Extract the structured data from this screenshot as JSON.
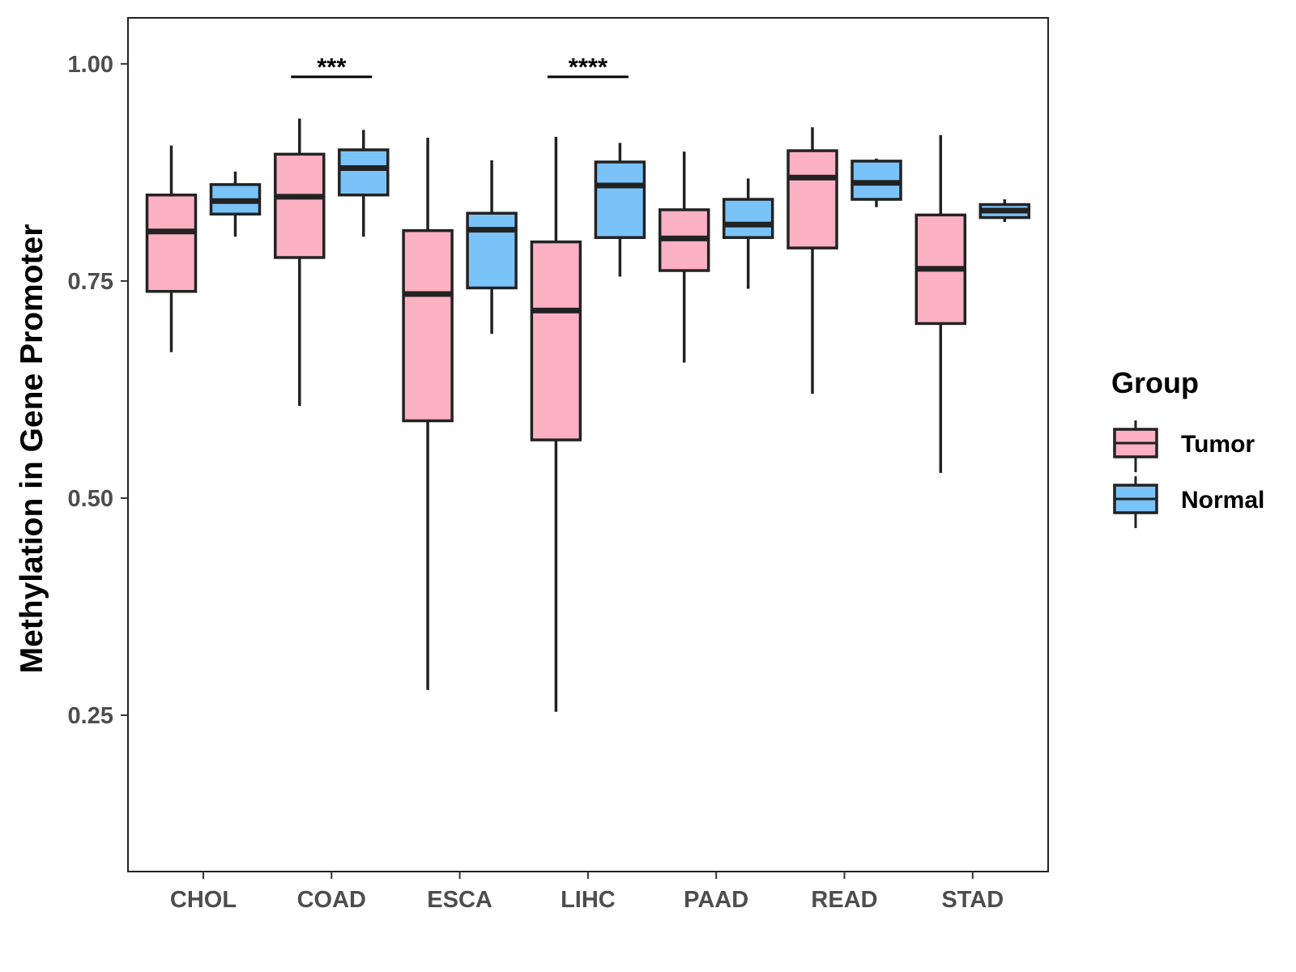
{
  "chart_data": {
    "type": "boxplot",
    "title": "",
    "xlabel": "",
    "ylabel": "Methylation in Gene Promoter",
    "ylim": [
      0.07,
      1.053
    ],
    "y_ticks": [
      "0.25",
      "0.50",
      "0.75",
      "1.00"
    ],
    "y_tick_values": [
      0.25,
      0.5,
      0.75,
      1.0
    ],
    "categories": [
      "CHOL",
      "COAD",
      "ESCA",
      "LIHC",
      "PAAD",
      "READ",
      "STAD"
    ],
    "legend": {
      "title": "Group",
      "position": "right",
      "items": [
        {
          "label": "Tumor",
          "color": "#FCB0C3"
        },
        {
          "label": "Normal",
          "color": "#7AC3F9"
        }
      ]
    },
    "series": [
      {
        "name": "Tumor",
        "color": "#FCB0C3",
        "boxes": [
          {
            "category": "CHOL",
            "min": 0.668,
            "q1": 0.738,
            "median": 0.807,
            "q3": 0.849,
            "max": 0.906
          },
          {
            "category": "COAD",
            "min": 0.606,
            "q1": 0.777,
            "median": 0.847,
            "q3": 0.896,
            "max": 0.937
          },
          {
            "category": "ESCA",
            "min": 0.279,
            "q1": 0.589,
            "median": 0.735,
            "q3": 0.808,
            "max": 0.915
          },
          {
            "category": "LIHC",
            "min": 0.254,
            "q1": 0.567,
            "median": 0.716,
            "q3": 0.795,
            "max": 0.916
          },
          {
            "category": "PAAD",
            "min": 0.656,
            "q1": 0.762,
            "median": 0.799,
            "q3": 0.832,
            "max": 0.899
          },
          {
            "category": "READ",
            "min": 0.62,
            "q1": 0.788,
            "median": 0.869,
            "q3": 0.9,
            "max": 0.927
          },
          {
            "category": "STAD",
            "min": 0.529,
            "q1": 0.701,
            "median": 0.764,
            "q3": 0.826,
            "max": 0.918
          }
        ]
      },
      {
        "name": "Normal",
        "color": "#7AC3F9",
        "boxes": [
          {
            "category": "CHOL",
            "min": 0.801,
            "q1": 0.827,
            "median": 0.842,
            "q3": 0.861,
            "max": 0.876
          },
          {
            "category": "COAD",
            "min": 0.801,
            "q1": 0.849,
            "median": 0.88,
            "q3": 0.901,
            "max": 0.924
          },
          {
            "category": "ESCA",
            "min": 0.689,
            "q1": 0.742,
            "median": 0.809,
            "q3": 0.828,
            "max": 0.889
          },
          {
            "category": "LIHC",
            "min": 0.755,
            "q1": 0.8,
            "median": 0.86,
            "q3": 0.887,
            "max": 0.909
          },
          {
            "category": "PAAD",
            "min": 0.741,
            "q1": 0.8,
            "median": 0.815,
            "q3": 0.844,
            "max": 0.868
          },
          {
            "category": "READ",
            "min": 0.835,
            "q1": 0.844,
            "median": 0.863,
            "q3": 0.888,
            "max": 0.891
          },
          {
            "category": "STAD",
            "min": 0.818,
            "q1": 0.823,
            "median": 0.831,
            "q3": 0.838,
            "max": 0.844
          }
        ]
      }
    ],
    "annotations": [
      {
        "category": "COAD",
        "label": "***",
        "y": 0.985
      },
      {
        "category": "LIHC",
        "label": "****",
        "y": 0.985
      }
    ]
  }
}
